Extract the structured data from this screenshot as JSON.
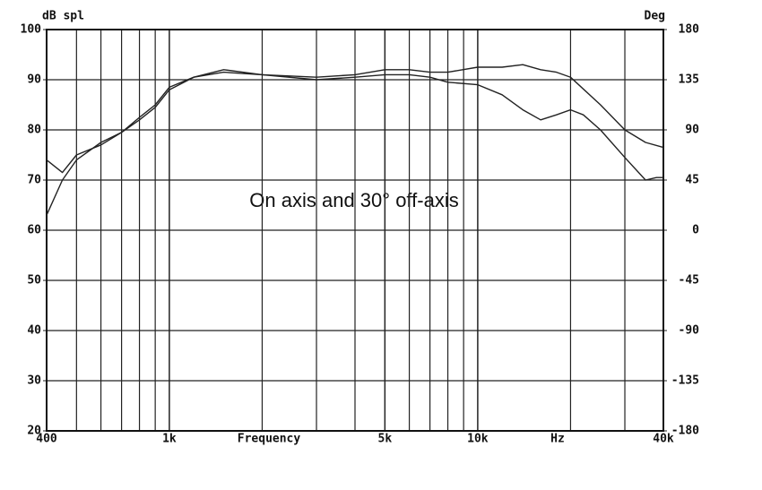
{
  "chart_data": {
    "type": "line",
    "annotation": "On axis and 30° off-axis",
    "ylabel": "dB spl",
    "y2label": "Deg",
    "xlabel": "Frequency",
    "xunit": "Hz",
    "xscale": "log",
    "grid": true,
    "xlim": [
      400,
      40000
    ],
    "xticks": [
      400,
      {
        "value": 1000,
        "label": "1k"
      },
      {
        "value": 5000,
        "label": "5k"
      },
      {
        "value": 10000,
        "label": "10k"
      },
      {
        "value": 40000,
        "label": "40k"
      }
    ],
    "xminor_ticks": [
      500,
      600,
      700,
      800,
      900,
      2000,
      3000,
      4000,
      6000,
      7000,
      8000,
      9000,
      20000,
      30000
    ],
    "ylim": [
      20,
      100
    ],
    "yticks": [
      20,
      30,
      40,
      50,
      60,
      70,
      80,
      90,
      100
    ],
    "y2lim": [
      -180,
      180
    ],
    "y2ticks": [
      -180,
      -135,
      -90,
      -45,
      0,
      45,
      90,
      135,
      180
    ],
    "series": [
      {
        "color": "#222222",
        "x": [
          400,
          450,
          500,
          600,
          700,
          800,
          900,
          1000,
          1200,
          1500,
          2000,
          3000,
          4000,
          5000,
          6000,
          7000,
          8000,
          10000,
          12000,
          14000,
          16000,
          18000,
          20000,
          25000,
          30000,
          35000,
          40000
        ],
        "values": [
          74,
          71.5,
          75,
          77,
          79.5,
          82,
          84.5,
          88,
          90.5,
          91.5,
          91,
          90.5,
          91,
          92,
          92,
          91.5,
          91.5,
          92.5,
          92.5,
          93,
          92,
          91.5,
          90.5,
          85,
          80,
          77.5,
          76.5
        ]
      },
      {
        "color": "#222222",
        "x": [
          400,
          450,
          500,
          600,
          700,
          800,
          900,
          1000,
          1200,
          1500,
          2000,
          3000,
          4000,
          5000,
          6000,
          7000,
          8000,
          10000,
          12000,
          14000,
          16000,
          18000,
          20000,
          22000,
          25000,
          30000,
          35000,
          38000,
          40000
        ],
        "values": [
          63,
          70,
          74,
          77.5,
          79.5,
          82.5,
          85,
          88.5,
          90.5,
          92,
          91,
          90,
          90.5,
          91,
          91,
          90.5,
          89.5,
          89,
          87,
          84,
          82,
          83,
          84,
          83,
          80,
          74.5,
          70,
          70.5,
          70.5
        ]
      }
    ]
  }
}
